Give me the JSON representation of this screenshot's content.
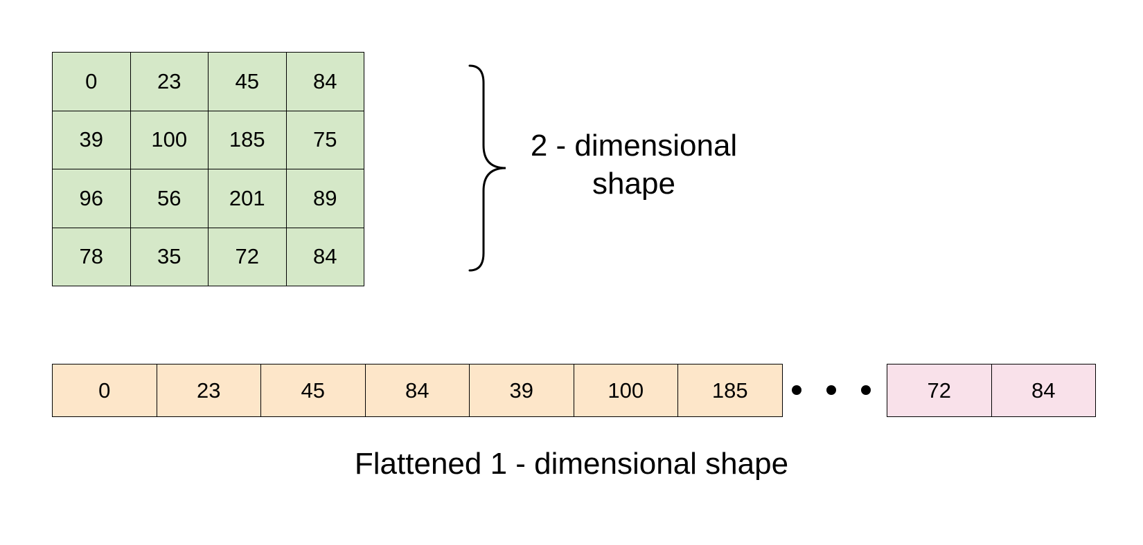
{
  "matrix": {
    "rows": [
      [
        "0",
        "23",
        "45",
        "84"
      ],
      [
        "39",
        "100",
        "185",
        "75"
      ],
      [
        "96",
        "56",
        "201",
        "89"
      ],
      [
        "78",
        "35",
        "72",
        "84"
      ]
    ],
    "color": "#d5e8c8"
  },
  "label_2d": {
    "line1": "2 - dimensional",
    "line2": "shape"
  },
  "flattened": {
    "head": [
      "0",
      "23",
      "45",
      "84",
      "39",
      "100",
      "185"
    ],
    "head_color": "#fde6c9",
    "tail": [
      "72",
      "84"
    ],
    "tail_color": "#f9e1ea"
  },
  "label_1d": "Flattened 1 - dimensional shape"
}
